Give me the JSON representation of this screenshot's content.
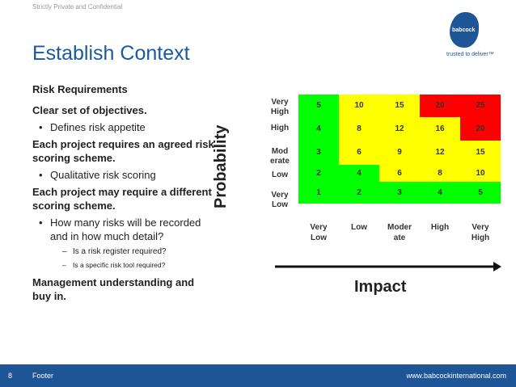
{
  "confidential": "Strictly Private and Confidential",
  "title": "Establish Context",
  "logo": {
    "name": "babcock",
    "tagline": "trusted to deliver™"
  },
  "bullets": {
    "h1": "Risk Requirements",
    "h2": "Clear set of objectives.",
    "b1": "Defines risk appetite",
    "h3": "Each project requires an agreed risk scoring scheme.",
    "b2": "Qualitative risk scoring",
    "h4": "Each project may require a different scoring scheme.",
    "b3": "How many risks will be recorded and in how much detail?",
    "s1": "Is a risk register required?",
    "s2": "Is a specific risk tool required?",
    "h5": "Management understanding and buy in."
  },
  "matrix": {
    "y_axis_label": "Probability",
    "x_axis_label": "Impact",
    "row_labels": [
      "Very\nHigh",
      "High",
      "Mod\nerate",
      "Low",
      "Very\nLow"
    ],
    "col_labels": [
      "Very\nLow",
      "Low",
      "Moder\nate",
      "High",
      "Very\nHigh"
    ],
    "rows": [
      [
        "5",
        "10",
        "15",
        "20",
        "25"
      ],
      [
        "4",
        "8",
        "12",
        "16",
        "20"
      ],
      [
        "3",
        "6",
        "9",
        "12",
        "15"
      ],
      [
        "2",
        "4",
        "6",
        "8",
        "10"
      ],
      [
        "1",
        "2",
        "3",
        "4",
        "5"
      ]
    ],
    "colors": [
      [
        "#00ff00",
        "#ffff00",
        "#ffff00",
        "#ff0000",
        "#ff0000"
      ],
      [
        "#00ff00",
        "#ffff00",
        "#ffff00",
        "#ffff00",
        "#ff0000"
      ],
      [
        "#00ff00",
        "#ffff00",
        "#ffff00",
        "#ffff00",
        "#ffff00"
      ],
      [
        "#00ff00",
        "#00ff00",
        "#ffff00",
        "#ffff00",
        "#ffff00"
      ],
      [
        "#00ff00",
        "#00ff00",
        "#00ff00",
        "#00ff00",
        "#00ff00"
      ]
    ]
  },
  "footer": {
    "page": "8",
    "label": "Footer",
    "url": "www.babcockinternational.com"
  },
  "colors": {
    "title": "#1a5aa0",
    "footer_bg": "#1e5596"
  }
}
